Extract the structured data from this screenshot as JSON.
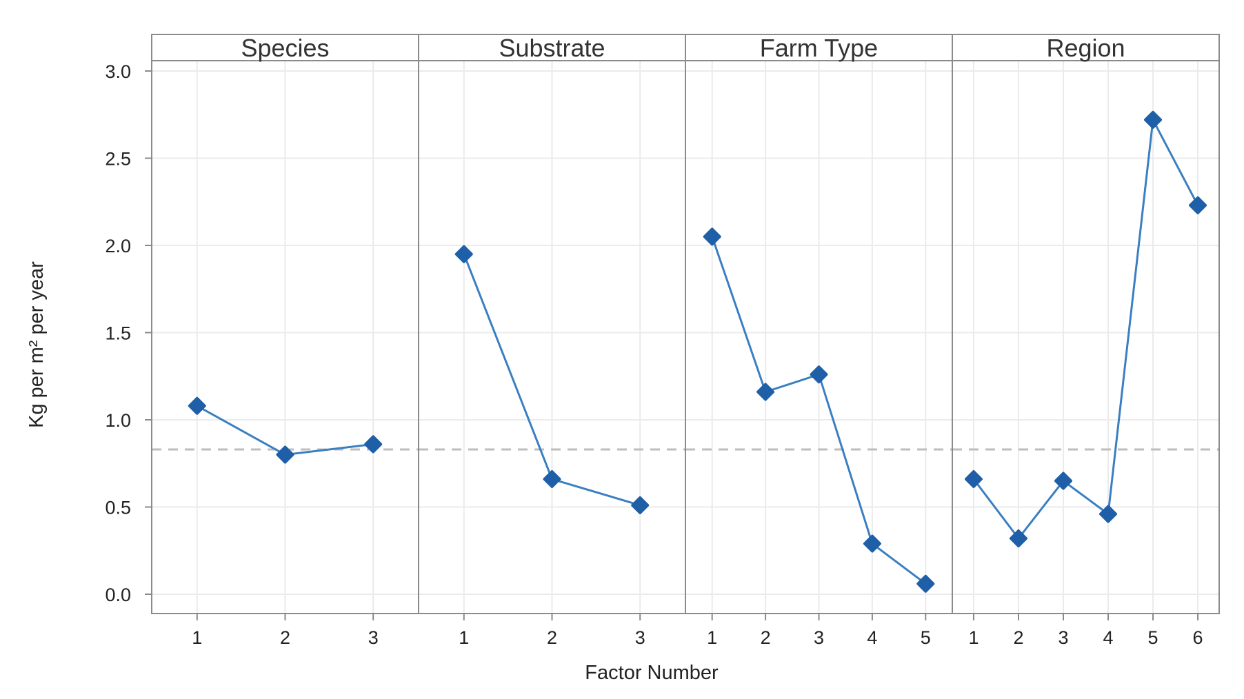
{
  "chart_data": {
    "type": "line",
    "xlabel": "Factor Number",
    "ylabel": "Kg per m² per year",
    "ylim": [
      0,
      3
    ],
    "yticks": [
      "0.0",
      "0.5",
      "1.0",
      "1.5",
      "2.0",
      "2.5",
      "3.0"
    ],
    "reference_line": 0.83,
    "grid": true,
    "colors": {
      "series": "#3a7fc1",
      "marker": "#1f5fa8",
      "reference": "#bdbdbd",
      "grid": "#ebebeb",
      "frame": "#8a8a8a"
    },
    "panels": [
      {
        "title": "Species",
        "categories": [
          "1",
          "2",
          "3"
        ],
        "values": [
          1.08,
          0.8,
          0.86
        ]
      },
      {
        "title": "Substrate",
        "categories": [
          "1",
          "2",
          "3"
        ],
        "values": [
          1.95,
          0.66,
          0.51
        ]
      },
      {
        "title": "Farm Type",
        "categories": [
          "1",
          "2",
          "3",
          "4",
          "5"
        ],
        "values": [
          2.05,
          1.16,
          1.26,
          0.29,
          0.06
        ]
      },
      {
        "title": "Region",
        "categories": [
          "1",
          "2",
          "3",
          "4",
          "5",
          "6"
        ],
        "values": [
          0.66,
          0.32,
          0.65,
          0.46,
          2.72,
          2.23
        ]
      }
    ]
  }
}
